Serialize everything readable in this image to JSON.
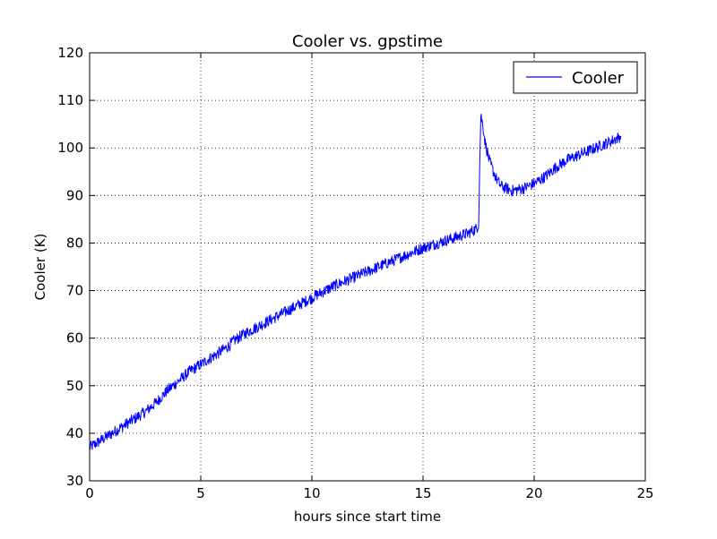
{
  "chart_data": {
    "type": "line",
    "title": "Cooler vs. gpstime",
    "xlabel": "hours since start time",
    "ylabel": "Cooler (K)",
    "xlim": [
      0,
      25
    ],
    "ylim": [
      30,
      120
    ],
    "xticks": [
      0,
      5,
      10,
      15,
      20,
      25
    ],
    "yticks": [
      30,
      40,
      50,
      60,
      70,
      80,
      90,
      100,
      110,
      120
    ],
    "grid": true,
    "legend_position": "top-right",
    "series": [
      {
        "name": "Cooler",
        "color": "#0000ff",
        "noise_amplitude": 1.2,
        "x": [
          0,
          0.5,
          1,
          1.5,
          2,
          2.5,
          3,
          3.5,
          4,
          4.5,
          5,
          5.5,
          6,
          6.3,
          6.5,
          7,
          8,
          9,
          10,
          11,
          12,
          13,
          14,
          15,
          16,
          17,
          17.4,
          17.5,
          17.55,
          17.6,
          17.7,
          17.8,
          18,
          18.3,
          18.5,
          19,
          19.5,
          20,
          20.5,
          21,
          21.5,
          22,
          22.5,
          23,
          23.5,
          23.9
        ],
        "y": [
          37,
          38.5,
          40,
          41.5,
          43,
          44.5,
          46.5,
          49,
          51,
          53,
          54.5,
          56,
          57.5,
          58.5,
          59.5,
          61,
          63.5,
          66,
          68.5,
          71,
          73,
          75,
          77,
          79,
          80.5,
          82,
          83,
          84,
          96,
          107,
          104.5,
          101,
          97,
          93.5,
          92,
          91,
          91.5,
          92.5,
          94,
          96,
          97.5,
          98.5,
          99.5,
          100.5,
          101.5,
          102.5
        ]
      }
    ]
  }
}
